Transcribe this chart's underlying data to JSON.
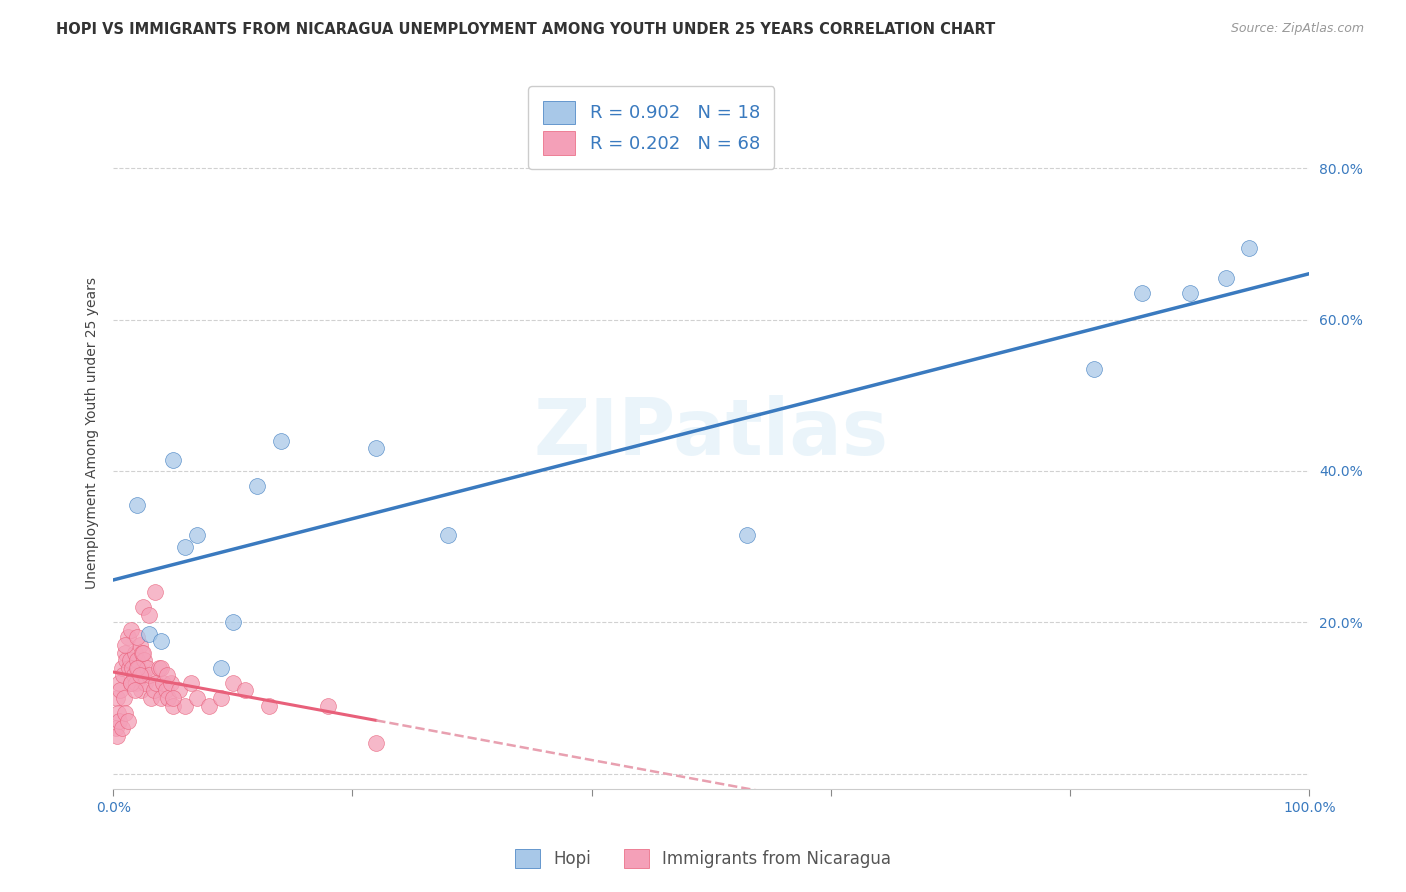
{
  "title": "HOPI VS IMMIGRANTS FROM NICARAGUA UNEMPLOYMENT AMONG YOUTH UNDER 25 YEARS CORRELATION CHART",
  "source": "Source: ZipAtlas.com",
  "ylabel": "Unemployment Among Youth under 25 years",
  "xlim": [
    0.0,
    1.0
  ],
  "ylim": [
    -0.02,
    0.92
  ],
  "xticks": [
    0.0,
    0.2,
    0.4,
    0.6,
    0.8,
    1.0
  ],
  "xtick_labels": [
    "0.0%",
    "",
    "",
    "",
    "",
    "100.0%"
  ],
  "yticks": [
    0.0,
    0.2,
    0.4,
    0.6,
    0.8
  ],
  "ytick_labels": [
    "",
    "20.0%",
    "40.0%",
    "60.0%",
    "80.0%"
  ],
  "watermark": "ZIPatlas",
  "blue_scatter_color": "#a8c8e8",
  "pink_scatter_color": "#f4a0b8",
  "blue_line_color": "#3a7abf",
  "pink_line_color": "#e8607a",
  "pink_dash_color": "#e8a0b0",
  "legend1_r": "0.902",
  "legend1_n": "18",
  "legend2_r": "0.202",
  "legend2_n": "68",
  "legend_label1": "Hopi",
  "legend_label2": "Immigrants from Nicaragua",
  "hopi_x": [
    0.02,
    0.03,
    0.05,
    0.07,
    0.1,
    0.12,
    0.22,
    0.28,
    0.53,
    0.82,
    0.86,
    0.9,
    0.93,
    0.95,
    0.04,
    0.06,
    0.09,
    0.14
  ],
  "hopi_y": [
    0.355,
    0.185,
    0.415,
    0.315,
    0.2,
    0.38,
    0.43,
    0.315,
    0.315,
    0.535,
    0.635,
    0.635,
    0.655,
    0.695,
    0.175,
    0.3,
    0.14,
    0.44
  ],
  "nic_x": [
    0.003,
    0.004,
    0.005,
    0.006,
    0.007,
    0.008,
    0.009,
    0.01,
    0.011,
    0.012,
    0.013,
    0.014,
    0.015,
    0.016,
    0.017,
    0.018,
    0.019,
    0.02,
    0.021,
    0.022,
    0.023,
    0.024,
    0.025,
    0.026,
    0.027,
    0.028,
    0.03,
    0.032,
    0.034,
    0.036,
    0.038,
    0.04,
    0.042,
    0.044,
    0.046,
    0.048,
    0.05,
    0.055,
    0.06,
    0.065,
    0.07,
    0.08,
    0.09,
    0.1,
    0.11,
    0.13,
    0.002,
    0.003,
    0.005,
    0.007,
    0.01,
    0.012,
    0.015,
    0.018,
    0.02,
    0.022,
    0.025,
    0.01,
    0.015,
    0.02,
    0.025,
    0.03,
    0.035,
    0.04,
    0.045,
    0.05,
    0.18,
    0.22
  ],
  "nic_y": [
    0.1,
    0.08,
    0.12,
    0.11,
    0.14,
    0.13,
    0.1,
    0.16,
    0.15,
    0.18,
    0.14,
    0.15,
    0.12,
    0.14,
    0.13,
    0.16,
    0.12,
    0.15,
    0.14,
    0.17,
    0.11,
    0.16,
    0.13,
    0.15,
    0.12,
    0.14,
    0.13,
    0.1,
    0.11,
    0.12,
    0.14,
    0.1,
    0.12,
    0.11,
    0.1,
    0.12,
    0.09,
    0.11,
    0.09,
    0.12,
    0.1,
    0.09,
    0.1,
    0.12,
    0.11,
    0.09,
    0.06,
    0.05,
    0.07,
    0.06,
    0.08,
    0.07,
    0.12,
    0.11,
    0.14,
    0.13,
    0.16,
    0.17,
    0.19,
    0.18,
    0.22,
    0.21,
    0.24,
    0.14,
    0.13,
    0.1,
    0.09,
    0.04
  ],
  "title_fontsize": 10.5,
  "axis_label_fontsize": 10,
  "tick_fontsize": 10,
  "source_fontsize": 9,
  "legend_fontsize": 13
}
